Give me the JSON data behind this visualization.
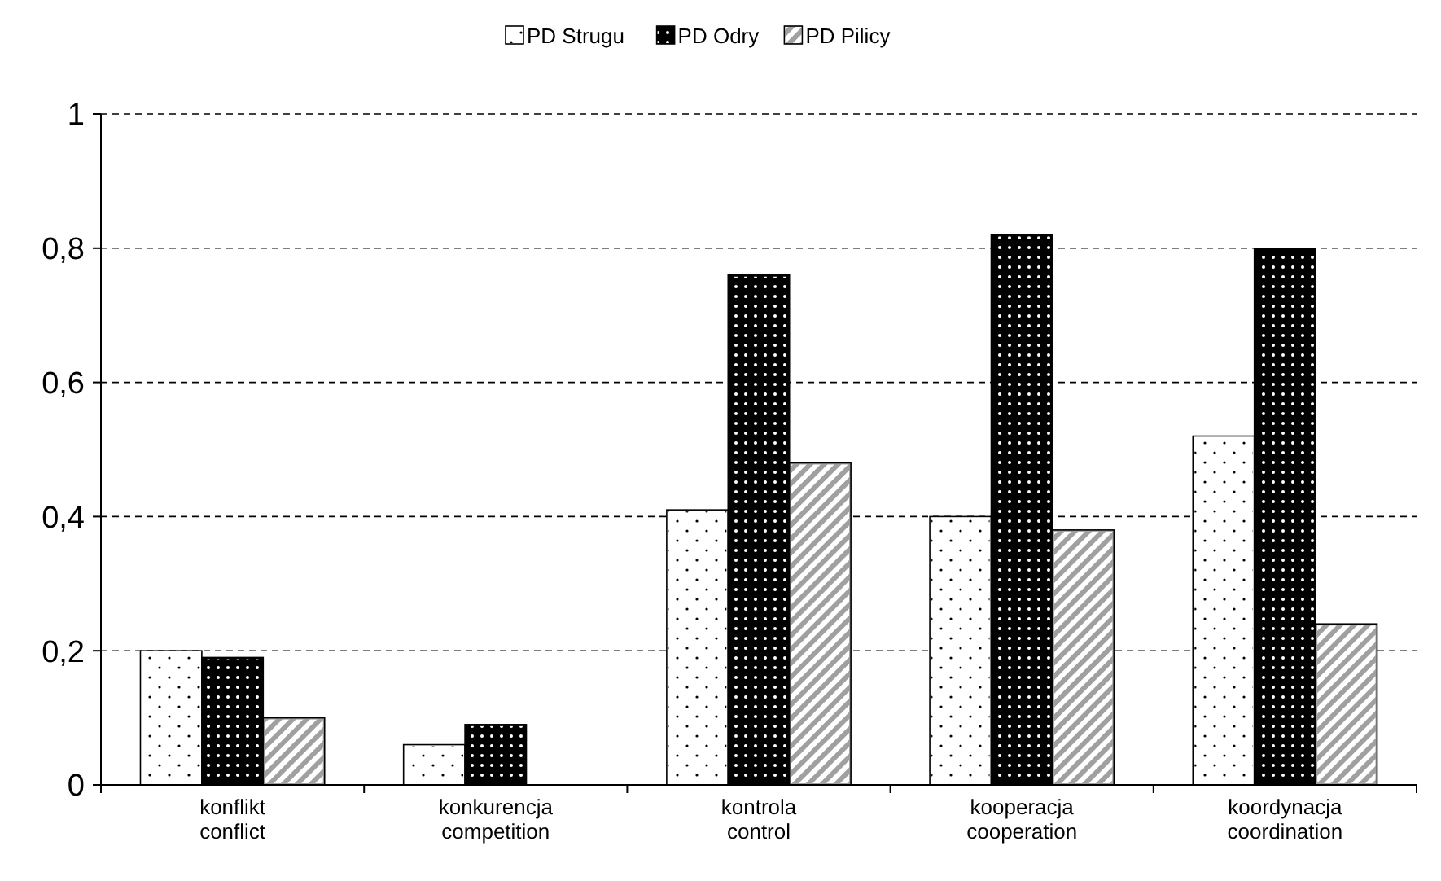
{
  "chart_data": {
    "type": "bar",
    "categories": [
      "konflikt\nconflict",
      "konkurencja\ncompetition",
      "kontrola\ncontrol",
      "kooperacja\ncooperation",
      "koordynacja\ncoordination"
    ],
    "series": [
      {
        "name": "PD Strugu",
        "color": "#ffffff",
        "values": [
          0.2,
          0.06,
          0.41,
          0.4,
          0.52
        ]
      },
      {
        "name": "PD Odry",
        "color": "#000000",
        "values": [
          0.19,
          0.09,
          0.76,
          0.82,
          0.8
        ]
      },
      {
        "name": "PD Pilicy",
        "color": "#a0a0a0",
        "values": [
          0.1,
          0,
          0.48,
          0.38,
          0.24
        ]
      }
    ],
    "ylim": [
      0,
      1
    ],
    "yticks": [
      0,
      {
        "value": 0.2,
        "label": "0,2"
      },
      {
        "value": 0.4,
        "label": "0,4"
      },
      {
        "value": 0.6,
        "label": "0,6"
      },
      {
        "value": 0.8,
        "label": "0,8"
      },
      1
    ],
    "grid": "y",
    "legend": "top"
  }
}
